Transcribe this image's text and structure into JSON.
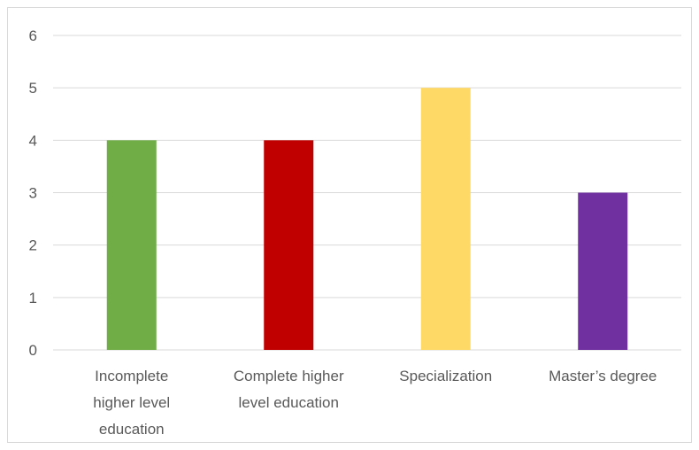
{
  "chart_data": {
    "type": "bar",
    "categories": [
      "Incomplete higher level education",
      "Complete higher level education",
      "Specialization",
      "Master’s degree"
    ],
    "category_label_lines": [
      [
        "Incomplete",
        "higher level",
        "education"
      ],
      [
        "Complete higher",
        "level education"
      ],
      [
        "Specialization"
      ],
      [
        "Master’s degree"
      ]
    ],
    "values": [
      4,
      4,
      5,
      3
    ],
    "bar_colors": [
      "#70ad47",
      "#c00000",
      "#ffd966",
      "#7030a0"
    ],
    "ylim": [
      0,
      6
    ],
    "yticks": [
      0,
      1,
      2,
      3,
      4,
      5,
      6
    ],
    "grid": true,
    "title": "",
    "xlabel": "",
    "ylabel": ""
  }
}
